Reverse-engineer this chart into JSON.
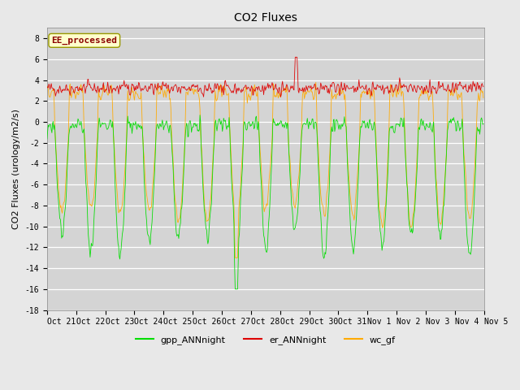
{
  "title": "CO2 Fluxes",
  "ylabel": "CO2 Fluxes (urology/m2/s)",
  "ylim": [
    -18,
    9
  ],
  "yticks": [
    -18,
    -16,
    -14,
    -12,
    -10,
    -8,
    -6,
    -4,
    -2,
    0,
    2,
    4,
    6,
    8
  ],
  "background_color": "#e8e8e8",
  "plot_bg_color": "#d4d4d4",
  "legend_labels": [
    "gpp_ANNnight",
    "er_ANNnight",
    "wc_gf"
  ],
  "legend_colors": [
    "#00dd00",
    "#dd0000",
    "#ffaa00"
  ],
  "watermark_text": "EE_processed",
  "watermark_color": "#8b0000",
  "watermark_bg": "#ffffcc",
  "n_days": 15,
  "title_fontsize": 10,
  "tick_fontsize": 7,
  "ylabel_fontsize": 8,
  "legend_fontsize": 8
}
